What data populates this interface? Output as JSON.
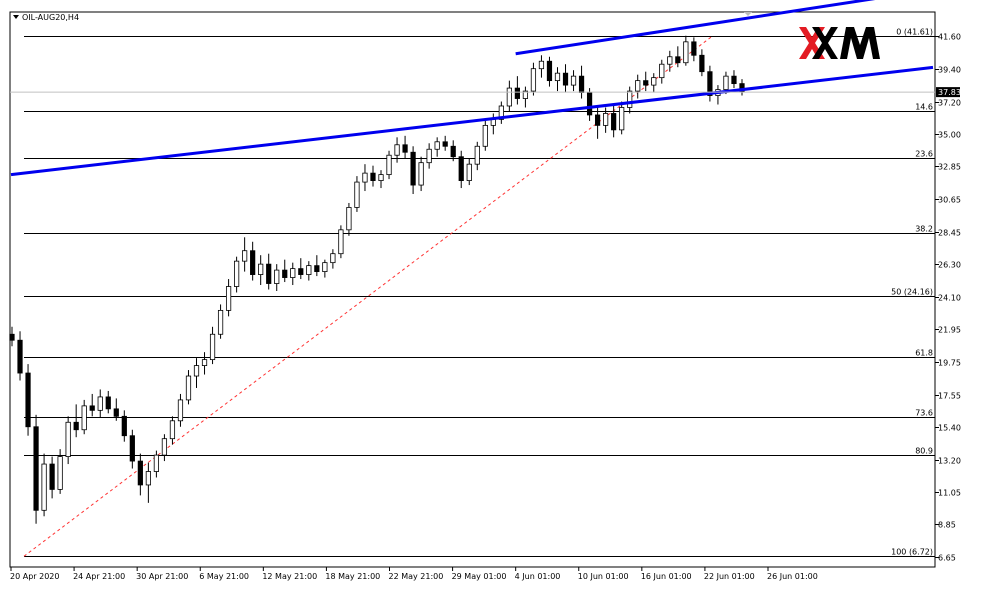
{
  "chart_data": {
    "type": "candlestick",
    "title": "OIL-AUG20,H4",
    "symbol": "OIL-AUG20",
    "timeframe": "H4",
    "price_axis_ticks": [
      "41.60",
      "39.40",
      "37.20",
      "35.00",
      "32.85",
      "30.65",
      "28.45",
      "26.30",
      "24.10",
      "21.95",
      "19.75",
      "17.55",
      "15.40",
      "13.20",
      "11.05",
      "8.85",
      "6.65"
    ],
    "time_axis_ticks": [
      "20 Apr 2020",
      "24 Apr 21:00",
      "30 Apr 21:00",
      "6 May 21:00",
      "12 May 21:00",
      "18 May 21:00",
      "22 May 21:00",
      "29 May 01:00",
      "4 Jun 01:00",
      "10 Jun 01:00",
      "16 Jun 01:00",
      "22 Jun 01:00",
      "26 Jun 01:00"
    ],
    "current_price": "37.83",
    "ylim": [
      6.0,
      43.2
    ],
    "fibonacci": {
      "levels": [
        {
          "label": "0  (41.61)",
          "price": 41.61
        },
        {
          "label": "14.6",
          "price": 36.56
        },
        {
          "label": "23.6",
          "price": 33.44
        },
        {
          "label": "38.2",
          "price": 28.42
        },
        {
          "label": "50  (24.16)",
          "price": 24.16
        },
        {
          "label": "61.8",
          "price": 20.09
        },
        {
          "label": "73.6",
          "price": 16.03
        },
        {
          "label": "80.9",
          "price": 13.51
        },
        {
          "label": "100  (6.72)",
          "price": 6.72
        }
      ],
      "anchor_start": {
        "time": "20 Apr 2020",
        "price": 6.72
      },
      "anchor_end": {
        "time": "22 Jun 01:00",
        "price": 41.61
      }
    },
    "trendlines": [
      {
        "name": "channel-upper",
        "start": {
          "time": "4 Jun 01:00",
          "price": 40.4
        },
        "end": {
          "time": "26 Jun 01:00",
          "price": 43.0
        }
      },
      {
        "name": "channel-lower",
        "start": {
          "time": "20 Apr 2020",
          "price": 32.3
        },
        "end": {
          "time": "26 Jun 01:00",
          "price": 38.2
        }
      }
    ],
    "candles": [
      {
        "o": 21.6,
        "h": 22.1,
        "l": 20.8,
        "c": 21.2
      },
      {
        "o": 21.2,
        "h": 21.8,
        "l": 18.5,
        "c": 19.0
      },
      {
        "o": 19.0,
        "h": 19.6,
        "l": 14.8,
        "c": 15.4
      },
      {
        "o": 15.4,
        "h": 16.2,
        "l": 8.9,
        "c": 9.8
      },
      {
        "o": 9.8,
        "h": 13.6,
        "l": 9.4,
        "c": 12.9
      },
      {
        "o": 12.9,
        "h": 13.4,
        "l": 10.6,
        "c": 11.2
      },
      {
        "o": 11.2,
        "h": 13.9,
        "l": 10.9,
        "c": 13.4
      },
      {
        "o": 13.4,
        "h": 16.1,
        "l": 12.9,
        "c": 15.7
      },
      {
        "o": 15.7,
        "h": 16.9,
        "l": 14.7,
        "c": 15.2
      },
      {
        "o": 15.2,
        "h": 17.2,
        "l": 14.9,
        "c": 16.8
      },
      {
        "o": 16.8,
        "h": 17.6,
        "l": 16.1,
        "c": 16.5
      },
      {
        "o": 16.5,
        "h": 17.9,
        "l": 16.0,
        "c": 17.4
      },
      {
        "o": 17.4,
        "h": 17.8,
        "l": 16.3,
        "c": 16.6
      },
      {
        "o": 16.6,
        "h": 17.3,
        "l": 15.8,
        "c": 16.1
      },
      {
        "o": 16.1,
        "h": 16.5,
        "l": 14.4,
        "c": 14.8
      },
      {
        "o": 14.8,
        "h": 15.2,
        "l": 12.6,
        "c": 13.1
      },
      {
        "o": 13.1,
        "h": 13.6,
        "l": 10.8,
        "c": 11.5
      },
      {
        "o": 11.5,
        "h": 13.0,
        "l": 10.3,
        "c": 12.4
      },
      {
        "o": 12.4,
        "h": 13.8,
        "l": 12.0,
        "c": 13.5
      },
      {
        "o": 13.5,
        "h": 14.9,
        "l": 13.1,
        "c": 14.6
      },
      {
        "o": 14.6,
        "h": 16.1,
        "l": 14.2,
        "c": 15.8
      },
      {
        "o": 15.8,
        "h": 17.6,
        "l": 15.4,
        "c": 17.2
      },
      {
        "o": 17.2,
        "h": 19.2,
        "l": 16.9,
        "c": 18.8
      },
      {
        "o": 18.8,
        "h": 20.0,
        "l": 18.0,
        "c": 19.5
      },
      {
        "o": 19.5,
        "h": 20.4,
        "l": 18.9,
        "c": 19.9
      },
      {
        "o": 19.9,
        "h": 22.1,
        "l": 19.6,
        "c": 21.6
      },
      {
        "o": 21.6,
        "h": 23.6,
        "l": 21.3,
        "c": 23.2
      },
      {
        "o": 23.2,
        "h": 25.3,
        "l": 22.8,
        "c": 24.8
      },
      {
        "o": 24.8,
        "h": 26.8,
        "l": 24.4,
        "c": 26.5
      },
      {
        "o": 26.5,
        "h": 28.1,
        "l": 25.8,
        "c": 27.2
      },
      {
        "o": 27.2,
        "h": 27.8,
        "l": 25.2,
        "c": 25.6
      },
      {
        "o": 25.6,
        "h": 26.9,
        "l": 24.9,
        "c": 26.3
      },
      {
        "o": 26.3,
        "h": 27.0,
        "l": 24.6,
        "c": 25.0
      },
      {
        "o": 25.0,
        "h": 26.3,
        "l": 24.5,
        "c": 25.9
      },
      {
        "o": 25.9,
        "h": 26.6,
        "l": 25.1,
        "c": 25.4
      },
      {
        "o": 25.4,
        "h": 26.4,
        "l": 24.9,
        "c": 26.0
      },
      {
        "o": 26.0,
        "h": 26.7,
        "l": 25.3,
        "c": 25.6
      },
      {
        "o": 25.6,
        "h": 26.5,
        "l": 25.2,
        "c": 26.2
      },
      {
        "o": 26.2,
        "h": 26.9,
        "l": 25.5,
        "c": 25.8
      },
      {
        "o": 25.8,
        "h": 26.6,
        "l": 25.4,
        "c": 26.4
      },
      {
        "o": 26.4,
        "h": 27.3,
        "l": 26.0,
        "c": 27.0
      },
      {
        "o": 27.0,
        "h": 28.9,
        "l": 26.7,
        "c": 28.6
      },
      {
        "o": 28.6,
        "h": 30.4,
        "l": 28.2,
        "c": 30.1
      },
      {
        "o": 30.1,
        "h": 32.2,
        "l": 29.8,
        "c": 31.8
      },
      {
        "o": 31.8,
        "h": 33.0,
        "l": 31.2,
        "c": 32.4
      },
      {
        "o": 32.4,
        "h": 32.9,
        "l": 31.5,
        "c": 31.9
      },
      {
        "o": 31.9,
        "h": 32.6,
        "l": 31.4,
        "c": 32.3
      },
      {
        "o": 32.3,
        "h": 33.9,
        "l": 32.0,
        "c": 33.6
      },
      {
        "o": 33.6,
        "h": 34.8,
        "l": 33.1,
        "c": 34.3
      },
      {
        "o": 34.3,
        "h": 34.9,
        "l": 33.4,
        "c": 33.8
      },
      {
        "o": 33.8,
        "h": 34.2,
        "l": 31.0,
        "c": 31.6
      },
      {
        "o": 31.6,
        "h": 33.5,
        "l": 31.2,
        "c": 33.1
      },
      {
        "o": 33.1,
        "h": 34.4,
        "l": 32.7,
        "c": 34.0
      },
      {
        "o": 34.0,
        "h": 34.8,
        "l": 33.5,
        "c": 34.5
      },
      {
        "o": 34.5,
        "h": 34.9,
        "l": 33.9,
        "c": 34.2
      },
      {
        "o": 34.2,
        "h": 34.6,
        "l": 33.2,
        "c": 33.5
      },
      {
        "o": 33.5,
        "h": 33.9,
        "l": 31.4,
        "c": 31.9
      },
      {
        "o": 31.9,
        "h": 33.4,
        "l": 31.6,
        "c": 33.0
      },
      {
        "o": 33.0,
        "h": 34.5,
        "l": 32.6,
        "c": 34.2
      },
      {
        "o": 34.2,
        "h": 35.9,
        "l": 33.9,
        "c": 35.6
      },
      {
        "o": 35.6,
        "h": 36.4,
        "l": 35.0,
        "c": 36.0
      },
      {
        "o": 36.0,
        "h": 37.2,
        "l": 35.7,
        "c": 36.9
      },
      {
        "o": 36.9,
        "h": 38.6,
        "l": 36.5,
        "c": 38.1
      },
      {
        "o": 38.1,
        "h": 38.9,
        "l": 37.0,
        "c": 37.4
      },
      {
        "o": 37.4,
        "h": 38.2,
        "l": 36.8,
        "c": 37.9
      },
      {
        "o": 37.9,
        "h": 39.8,
        "l": 37.6,
        "c": 39.4
      },
      {
        "o": 39.4,
        "h": 40.3,
        "l": 38.8,
        "c": 39.9
      },
      {
        "o": 39.9,
        "h": 40.2,
        "l": 38.2,
        "c": 38.6
      },
      {
        "o": 38.6,
        "h": 39.5,
        "l": 37.9,
        "c": 39.1
      },
      {
        "o": 39.1,
        "h": 39.7,
        "l": 37.8,
        "c": 38.3
      },
      {
        "o": 38.3,
        "h": 39.3,
        "l": 37.9,
        "c": 38.9
      },
      {
        "o": 38.9,
        "h": 39.6,
        "l": 37.4,
        "c": 37.8
      },
      {
        "o": 37.8,
        "h": 38.1,
        "l": 35.9,
        "c": 36.3
      },
      {
        "o": 36.3,
        "h": 36.9,
        "l": 34.7,
        "c": 35.6
      },
      {
        "o": 35.6,
        "h": 36.8,
        "l": 35.1,
        "c": 36.4
      },
      {
        "o": 36.4,
        "h": 37.0,
        "l": 34.8,
        "c": 35.3
      },
      {
        "o": 35.3,
        "h": 37.2,
        "l": 35.0,
        "c": 36.8
      },
      {
        "o": 36.8,
        "h": 38.2,
        "l": 36.4,
        "c": 37.9
      },
      {
        "o": 37.9,
        "h": 39.0,
        "l": 37.4,
        "c": 38.6
      },
      {
        "o": 38.6,
        "h": 39.2,
        "l": 37.9,
        "c": 38.3
      },
      {
        "o": 38.3,
        "h": 39.1,
        "l": 37.8,
        "c": 38.8
      },
      {
        "o": 38.8,
        "h": 40.0,
        "l": 38.4,
        "c": 39.7
      },
      {
        "o": 39.7,
        "h": 40.6,
        "l": 39.2,
        "c": 40.2
      },
      {
        "o": 40.2,
        "h": 40.9,
        "l": 39.5,
        "c": 39.8
      },
      {
        "o": 39.8,
        "h": 41.61,
        "l": 39.6,
        "c": 41.2
      },
      {
        "o": 41.2,
        "h": 41.5,
        "l": 39.9,
        "c": 40.3
      },
      {
        "o": 40.3,
        "h": 40.7,
        "l": 38.9,
        "c": 39.2
      },
      {
        "o": 39.2,
        "h": 39.6,
        "l": 37.2,
        "c": 37.6
      },
      {
        "o": 37.6,
        "h": 38.3,
        "l": 37.0,
        "c": 38.0
      },
      {
        "o": 38.0,
        "h": 39.2,
        "l": 37.7,
        "c": 38.9
      },
      {
        "o": 38.9,
        "h": 39.3,
        "l": 38.1,
        "c": 38.4
      },
      {
        "o": 38.4,
        "h": 38.7,
        "l": 37.6,
        "c": 37.83
      }
    ]
  }
}
